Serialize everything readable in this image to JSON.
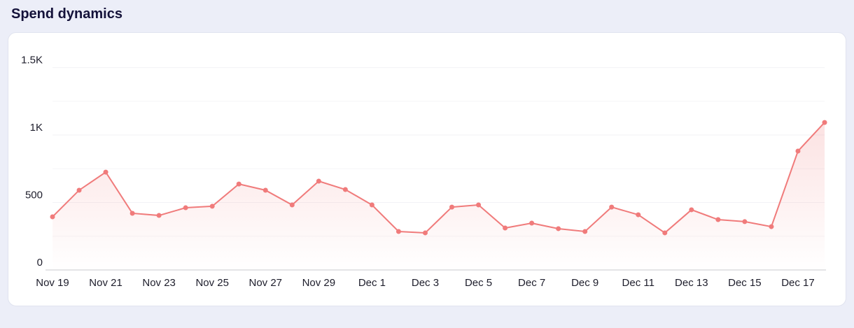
{
  "chart_data": {
    "type": "line",
    "title": "Spend dynamics",
    "categories": [
      "Nov 19",
      null,
      "Nov 21",
      null,
      "Nov 23",
      null,
      "Nov 25",
      null,
      "Nov 27",
      null,
      "Nov 29",
      null,
      "Dec 1",
      null,
      "Dec 3",
      null,
      "Dec 5",
      null,
      "Dec 7",
      null,
      "Dec 9",
      null,
      "Dec 11",
      null,
      "Dec 13",
      null,
      "Dec 15",
      null,
      "Dec 17",
      null
    ],
    "series": [
      {
        "color": "#f07b7b",
        "values": [
          394,
          591,
          725,
          420,
          404,
          461,
          472,
          637,
          591,
          482,
          658,
          596,
          482,
          285,
          275,
          466,
          482,
          311,
          347,
          306,
          285,
          466,
          409,
          275,
          446,
          373,
          358,
          321,
          881,
          1093
        ]
      }
    ],
    "ylim": [
      0,
      1700
    ],
    "yticks": [
      0,
      500,
      {
        "value": 1000,
        "label": "1K"
      },
      {
        "value": 1500,
        "label": "1.5K"
      }
    ],
    "minor_yticks": [
      250,
      750,
      1250
    ],
    "grid": true
  }
}
